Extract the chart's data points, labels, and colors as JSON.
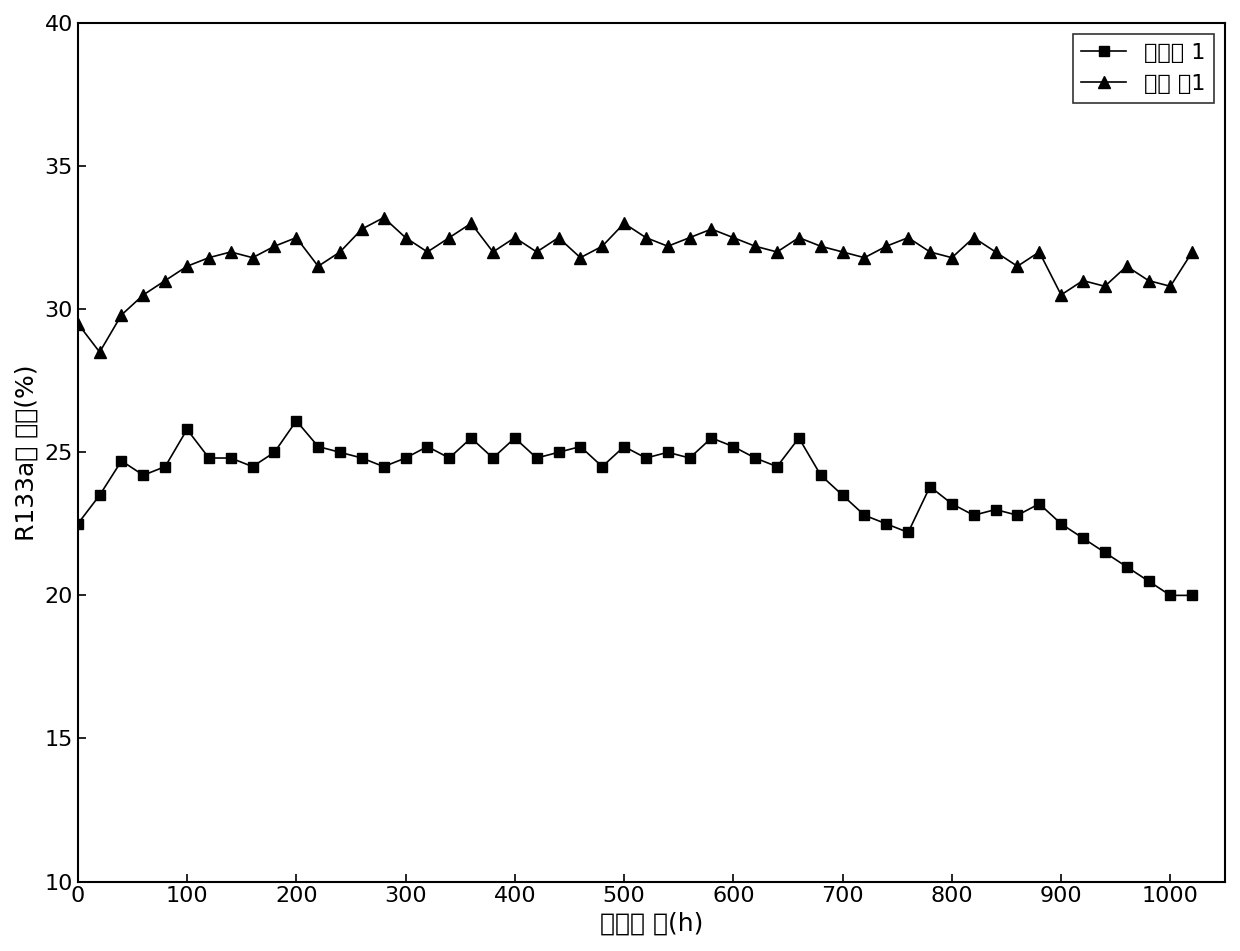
{
  "xlabel": "反应时 间(h)",
  "ylabel": "R133a转 化率(%)",
  "legend_square": "对比例 1",
  "legend_triangle": "实施 例1",
  "xlim": [
    0,
    1050
  ],
  "ylim": [
    10,
    40
  ],
  "xticks": [
    0,
    100,
    200,
    300,
    400,
    500,
    600,
    700,
    800,
    900,
    1000
  ],
  "yticks": [
    10,
    15,
    20,
    25,
    30,
    35,
    40
  ],
  "series1_x": [
    0,
    20,
    40,
    60,
    80,
    100,
    120,
    140,
    160,
    180,
    200,
    220,
    240,
    260,
    280,
    300,
    320,
    340,
    360,
    380,
    400,
    420,
    440,
    460,
    480,
    500,
    520,
    540,
    560,
    580,
    600,
    620,
    640,
    660,
    680,
    700,
    720,
    740,
    760,
    780,
    800,
    820,
    840,
    860,
    880,
    900,
    920,
    940,
    960,
    980,
    1000,
    1020
  ],
  "series1_y": [
    22.5,
    23.5,
    24.7,
    24.2,
    24.5,
    25.8,
    24.8,
    24.8,
    24.5,
    25.0,
    26.1,
    25.2,
    25.0,
    24.8,
    24.5,
    24.8,
    25.2,
    24.8,
    25.5,
    24.8,
    25.5,
    24.8,
    25.0,
    25.2,
    24.5,
    25.2,
    24.8,
    25.0,
    24.8,
    25.5,
    25.2,
    24.8,
    24.5,
    25.5,
    24.2,
    23.5,
    22.8,
    22.5,
    22.2,
    23.8,
    23.2,
    22.8,
    23.0,
    22.8,
    23.2,
    22.5,
    22.0,
    21.5,
    21.0,
    20.5,
    20.0,
    20.0
  ],
  "series2_x": [
    0,
    20,
    40,
    60,
    80,
    100,
    120,
    140,
    160,
    180,
    200,
    220,
    240,
    260,
    280,
    300,
    320,
    340,
    360,
    380,
    400,
    420,
    440,
    460,
    480,
    500,
    520,
    540,
    560,
    580,
    600,
    620,
    640,
    660,
    680,
    700,
    720,
    740,
    760,
    780,
    800,
    820,
    840,
    860,
    880,
    900,
    920,
    940,
    960,
    980,
    1000,
    1020
  ],
  "series2_y": [
    29.5,
    28.5,
    29.8,
    30.5,
    31.0,
    31.5,
    31.8,
    32.0,
    31.8,
    32.2,
    32.5,
    31.5,
    32.0,
    32.8,
    33.2,
    32.5,
    32.0,
    32.5,
    33.0,
    32.0,
    32.5,
    32.0,
    32.5,
    31.8,
    32.2,
    33.0,
    32.5,
    32.2,
    32.5,
    32.8,
    32.5,
    32.2,
    32.0,
    32.5,
    32.2,
    32.0,
    31.8,
    32.2,
    32.5,
    32.0,
    31.8,
    32.5,
    32.0,
    31.5,
    32.0,
    30.5,
    31.0,
    30.8,
    31.5,
    31.0,
    30.8,
    32.0
  ],
  "line_color": "black",
  "marker_color": "black",
  "bg_color": "white",
  "fontsize_label": 18,
  "fontsize_tick": 16,
  "fontsize_legend": 16
}
